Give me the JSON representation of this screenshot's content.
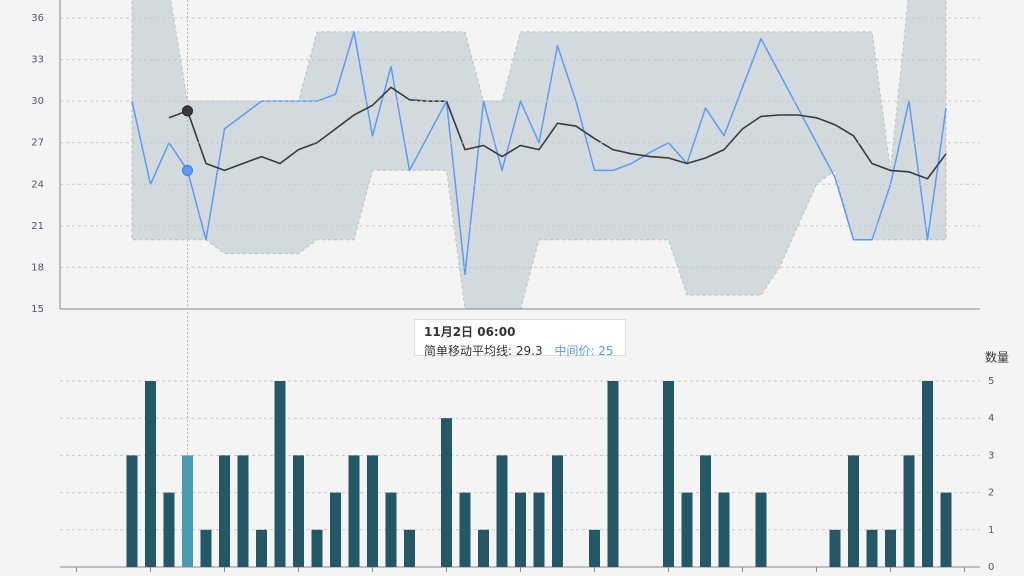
{
  "chart_data": [
    {
      "type": "line",
      "ylim": [
        15,
        37.3
      ],
      "yticks": [
        15,
        18,
        21,
        24,
        27,
        30,
        33,
        36
      ],
      "grid": true,
      "hover_index": 3,
      "tooltip_title": "11月2日 06:00",
      "series": [
        {
          "type": "arearange",
          "color": "#d3dadd",
          "high": [
            38,
            38,
            38,
            30,
            30,
            30,
            30,
            30,
            30,
            30,
            35,
            35,
            35,
            35,
            35,
            35,
            35,
            35,
            35,
            30,
            30,
            35,
            35,
            35,
            35,
            35,
            35,
            35,
            35,
            35,
            35,
            35,
            35,
            35,
            35,
            35,
            35,
            35,
            35,
            35,
            35,
            25,
            38,
            38,
            38
          ],
          "low": [
            20,
            20,
            20,
            20,
            20,
            19,
            19,
            19,
            19,
            19,
            20,
            20,
            20,
            25,
            25,
            25,
            25,
            25,
            15,
            15,
            15,
            15,
            20,
            20,
            20,
            20,
            20,
            20,
            20,
            20,
            16,
            16,
            16,
            16,
            16,
            18,
            21,
            24,
            25,
            20,
            20,
            20,
            20,
            20,
            20
          ]
        },
        {
          "name": "中间价",
          "color": "#5b9bf5",
          "values": [
            30,
            24,
            27,
            25,
            20,
            28,
            29,
            30,
            30,
            30,
            30,
            30.5,
            35,
            27.5,
            32.5,
            25,
            27.5,
            30,
            17.5,
            30,
            25,
            30,
            27,
            34,
            30,
            25,
            25,
            25.5,
            26.3,
            27,
            25.5,
            29.5,
            27.5,
            31,
            34.5,
            32,
            29.5,
            27,
            24.5,
            20,
            20,
            24,
            30,
            20,
            29.5
          ]
        },
        {
          "name": "简单移动平均线",
          "color": "#3a3a3a",
          "values": [
            null,
            null,
            28.8,
            29.3,
            25.5,
            25,
            25.5,
            26,
            25.5,
            26.5,
            27,
            28,
            29,
            29.7,
            31,
            30.1,
            30,
            30,
            26.5,
            26.8,
            26,
            26.8,
            26.5,
            28.4,
            28.2,
            27.3,
            26.5,
            26.2,
            26,
            25.9,
            25.5,
            25.9,
            26.5,
            28,
            28.9,
            29,
            29,
            28.8,
            28.3,
            27.5,
            25.5,
            25,
            24.9,
            24.4,
            26.2
          ]
        }
      ]
    },
    {
      "type": "bar",
      "y_axis_title": "数量",
      "ylim": [
        0,
        5
      ],
      "yticks": [
        0,
        1,
        2,
        3,
        4,
        5
      ],
      "grid": true,
      "color": "#255866",
      "hover_color": "#4a9ab3",
      "hover_index": 3,
      "values": [
        3,
        5,
        2,
        3,
        1,
        3,
        3,
        1,
        5,
        3,
        1,
        2,
        3,
        3,
        2,
        1,
        0,
        4,
        2,
        1,
        3,
        2,
        2,
        3,
        0,
        1,
        5,
        0,
        0,
        5,
        2,
        3,
        2,
        0,
        2,
        0,
        0,
        0,
        1,
        3,
        1,
        1,
        3,
        5,
        2
      ]
    }
  ]
}
